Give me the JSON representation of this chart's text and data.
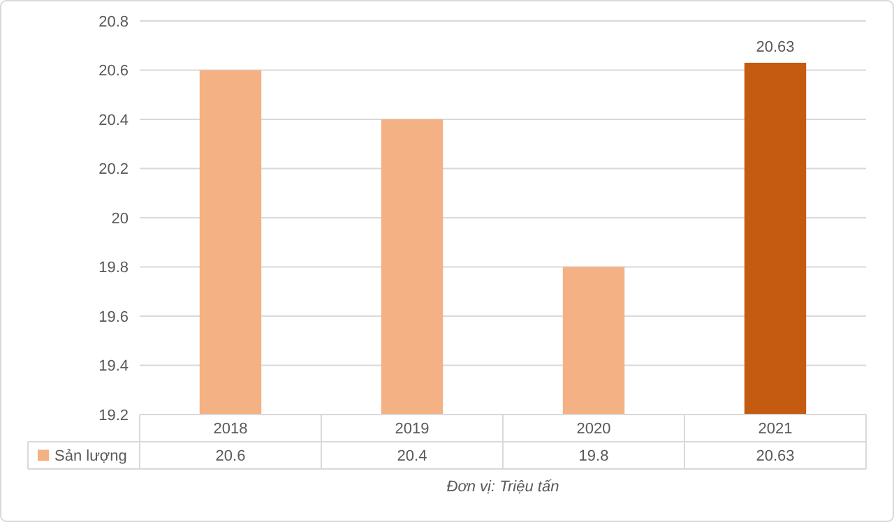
{
  "chart_data": {
    "type": "bar",
    "categories": [
      "2018",
      "2019",
      "2020",
      "2021"
    ],
    "series": [
      {
        "name": "Sản lượng",
        "color": "#f4b183",
        "colors": [
          "#f4b183",
          "#f4b183",
          "#f4b183",
          "#c55a11"
        ],
        "values": [
          20.6,
          20.4,
          19.8,
          20.63
        ]
      }
    ],
    "ylim": [
      19.2,
      20.8
    ],
    "yticks": [
      19.2,
      19.4,
      19.6,
      19.8,
      20,
      20.2,
      20.4,
      20.6,
      20.8
    ],
    "grid": "y",
    "data_labels": true,
    "legend": "bottom",
    "annotations": [
      {
        "text": "20.63",
        "x": "2021",
        "y": 20.63
      },
      "Đơn vị: Triệu tấn"
    ]
  }
}
